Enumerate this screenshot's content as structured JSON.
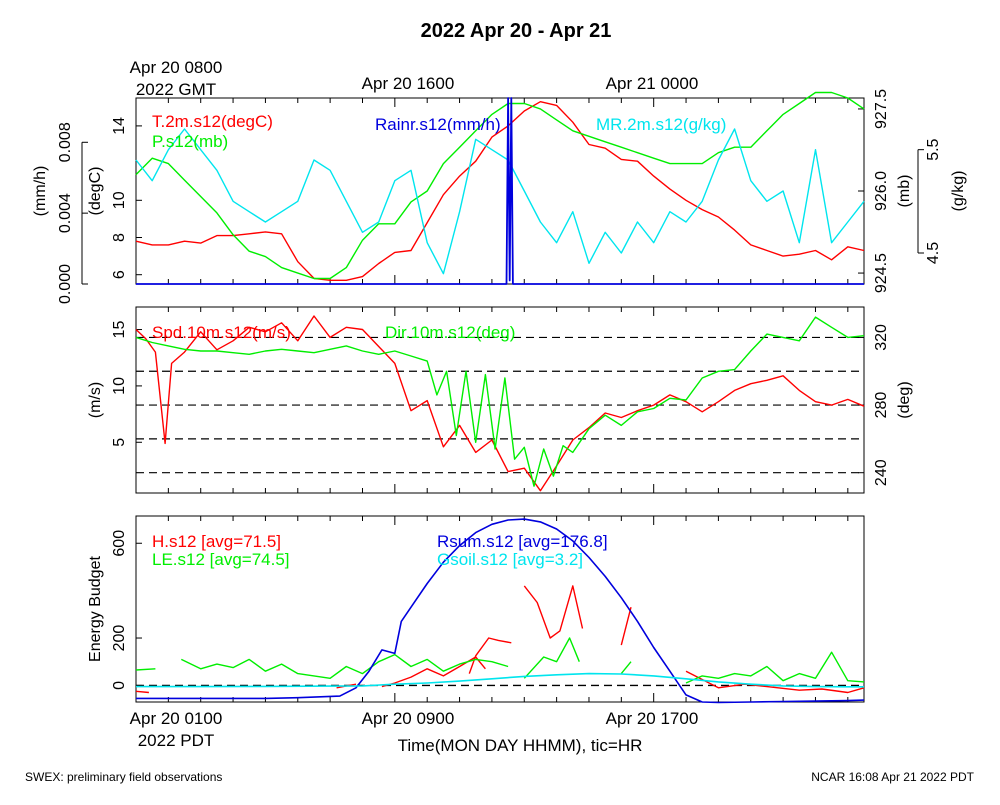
{
  "title": "2022 Apr 20 - Apr 21",
  "top_axis": {
    "labels": [
      {
        "lines": [
          "Apr 20 0800",
          "2022 GMT"
        ]
      },
      {
        "lines": [
          "Apr 20 1600"
        ]
      },
      {
        "lines": [
          "Apr 21 0000"
        ]
      }
    ]
  },
  "bottom_axis": {
    "labels": [
      {
        "lines": [
          "Apr 20 0100",
          "2022 PDT"
        ]
      },
      {
        "lines": [
          "Apr 20 0900"
        ]
      },
      {
        "lines": [
          "Apr 20 1700"
        ]
      }
    ],
    "title": "Time(MON DAY HHMM), tic=HR"
  },
  "footer": {
    "left": "SWEX: preliminary field observations",
    "right": "NCAR 16:08 Apr 21 2022 PDT"
  },
  "colors": {
    "red": "#ff0000",
    "green": "#00ee00",
    "blue": "#0000dd",
    "cyan": "#00e5ee",
    "black": "#000000"
  },
  "chart_data": [
    {
      "type": "line",
      "x_unit": "hours since Apr 20 0100 PDT",
      "xlim": [
        0,
        22.5
      ],
      "legend": [
        "T.2m.s12(degC)",
        "P.s12(mb)",
        "Rainr.s12(mm/h)",
        "MR.2m.s12(g/kg)"
      ],
      "axes": [
        {
          "label": "(mm/h)",
          "ticks": [
            "0.000",
            "0.004",
            "0.008"
          ],
          "range": [
            0,
            0.0105
          ]
        },
        {
          "label": "(degC)",
          "ticks": [
            "6",
            "8",
            "10",
            "14"
          ],
          "range": [
            5.5,
            15.5
          ]
        },
        {
          "label": "(mb)",
          "ticks": [
            "924.5",
            "926.0",
            "927.5"
          ],
          "range": [
            924.3,
            927.7
          ]
        },
        {
          "label": "(g/kg)",
          "ticks": [
            "4.5",
            "5.5"
          ],
          "range": [
            4.2,
            6.0
          ]
        }
      ],
      "series": [
        {
          "name": "T.2m.s12(degC)",
          "color": "red",
          "axis": 1,
          "x": [
            0,
            0.5,
            1,
            1.5,
            2,
            2.5,
            3,
            3.5,
            4,
            4.5,
            5,
            5.5,
            6,
            6.5,
            7,
            7.5,
            8,
            8.5,
            9,
            9.5,
            10,
            10.5,
            11,
            11.5,
            12,
            12.5,
            13,
            13.5,
            14,
            14.5,
            15,
            15.5,
            16,
            16.5,
            17,
            17.5,
            18,
            18.5,
            19,
            19.5,
            20,
            20.5,
            21,
            21.5,
            22,
            22.5
          ],
          "y": [
            7.8,
            7.6,
            7.6,
            7.8,
            7.7,
            8.1,
            8.1,
            8.2,
            8.3,
            8.2,
            6.7,
            5.8,
            5.7,
            5.7,
            5.9,
            6.6,
            7.2,
            7.3,
            8.8,
            10.3,
            11.3,
            12.1,
            13.4,
            14.0,
            14.8,
            15.3,
            15.1,
            14.2,
            13.0,
            12.8,
            12.2,
            12.1,
            11.3,
            10.6,
            10.0,
            9.5,
            9.1,
            8.4,
            7.6,
            7.3,
            7.0,
            7.1,
            7.3,
            6.8,
            7.5,
            7.3
          ]
        },
        {
          "name": "P.s12(mb)",
          "color": "green",
          "axis": 2,
          "x": [
            0,
            0.5,
            1,
            1.5,
            2,
            2.5,
            3,
            3.5,
            4,
            4.5,
            5,
            5.5,
            6,
            6.5,
            7,
            7.5,
            8,
            8.5,
            9,
            9.5,
            10,
            10.5,
            11,
            11.5,
            12,
            12.5,
            13,
            13.5,
            14,
            14.5,
            15,
            15.5,
            16,
            16.5,
            17,
            17.5,
            18,
            18.5,
            19,
            19.5,
            20,
            20.5,
            21,
            21.5,
            22,
            22.5
          ],
          "y": [
            926.3,
            926.6,
            926.5,
            926.2,
            925.9,
            925.6,
            925.2,
            924.9,
            924.8,
            924.6,
            924.5,
            924.4,
            924.4,
            924.6,
            925.1,
            925.4,
            925.4,
            925.8,
            926.0,
            926.5,
            926.8,
            927.1,
            927.4,
            927.6,
            927.6,
            927.5,
            927.3,
            927.1,
            927.0,
            926.9,
            926.8,
            926.7,
            926.6,
            926.5,
            926.5,
            926.5,
            926.7,
            926.8,
            926.8,
            927.1,
            927.4,
            927.6,
            927.8,
            927.8,
            927.7,
            927.5
          ]
        },
        {
          "name": "MR.2m.s12(g/kg)",
          "color": "cyan",
          "axis": 3,
          "x": [
            0,
            0.5,
            1,
            1.5,
            2,
            2.5,
            3,
            3.5,
            4,
            4.5,
            5,
            5.5,
            6,
            6.5,
            7,
            7.5,
            8,
            8.5,
            9,
            9.5,
            10,
            10.5,
            11,
            11.5,
            12,
            12.5,
            13,
            13.5,
            14,
            14.5,
            15,
            15.5,
            16,
            16.5,
            17,
            17.5,
            18,
            18.5,
            19,
            19.5,
            20,
            20.5,
            21,
            21.5,
            22,
            22.5
          ],
          "y": [
            5.4,
            5.2,
            5.5,
            5.7,
            5.5,
            5.3,
            5.0,
            4.9,
            4.8,
            4.9,
            5.0,
            5.4,
            5.3,
            5.0,
            4.7,
            4.8,
            5.2,
            5.3,
            4.6,
            4.3,
            4.9,
            5.6,
            5.5,
            5.4,
            5.1,
            4.8,
            4.6,
            4.9,
            4.4,
            4.7,
            4.5,
            4.8,
            4.6,
            4.9,
            4.8,
            5.0,
            5.4,
            5.7,
            5.2,
            5.0,
            5.1,
            4.6,
            5.5,
            4.6,
            4.8,
            5.0
          ]
        },
        {
          "name": "Rainr.s12(mm/h)",
          "color": "blue",
          "axis": 0,
          "x": [
            0,
            11.45,
            11.5,
            11.55,
            11.6,
            11.65,
            22.5
          ],
          "y": [
            0,
            0,
            0.0105,
            0.0002,
            0.0105,
            0,
            0
          ]
        }
      ]
    },
    {
      "type": "line",
      "x_unit": "hours since Apr 20 0100 PDT",
      "xlim": [
        0,
        22.5
      ],
      "legend": [
        "Spd.10m.s12(m/s)",
        "Dir.10m.s12(deg)"
      ],
      "axes": [
        {
          "label": "(m/s)",
          "ticks": [
            "5",
            "10",
            "15"
          ],
          "range": [
            0.5,
            17
          ]
        },
        {
          "label": "(deg)",
          "ticks": [
            "240",
            "280",
            "320"
          ],
          "range": [
            228,
            338
          ]
        }
      ],
      "reference_lines": [
        320,
        300,
        280,
        260,
        240
      ],
      "series": [
        {
          "name": "Spd.10m.s12(m/s)",
          "color": "red",
          "axis": 0,
          "x": [
            0,
            0.3,
            0.6,
            0.9,
            1.1,
            1.5,
            2,
            2.5,
            3,
            3.5,
            4,
            4.5,
            5,
            5.5,
            6,
            6.5,
            7,
            7.5,
            8,
            8.5,
            9,
            9.5,
            10,
            10.5,
            11,
            11.5,
            12,
            12.5,
            13,
            13.5,
            14,
            14.5,
            15,
            15.5,
            16,
            16.5,
            17,
            17.5,
            18,
            18.5,
            19,
            19.5,
            20,
            20.5,
            21,
            21.5,
            22,
            22.5
          ],
          "y": [
            15.0,
            14.2,
            13.0,
            4.9,
            12.0,
            13.0,
            14.8,
            13.2,
            14.0,
            15.2,
            14.8,
            15.6,
            14.0,
            16.2,
            14.3,
            15.2,
            15.0,
            13.5,
            12.0,
            7.8,
            8.7,
            4.6,
            6.5,
            4.1,
            5.2,
            2.4,
            2.7,
            0.7,
            2.9,
            5.2,
            6.3,
            7.6,
            7.2,
            7.8,
            8.3,
            9.2,
            8.6,
            7.7,
            8.6,
            9.6,
            10.2,
            10.5,
            10.9,
            9.6,
            8.6,
            8.3,
            8.8,
            8.2
          ]
        },
        {
          "name": "Dir.10m.s12(deg)",
          "color": "green",
          "axis": 1,
          "x": [
            0,
            0.5,
            1,
            1.5,
            2,
            2.5,
            3,
            3.5,
            4,
            4.5,
            5,
            5.5,
            6,
            6.5,
            7,
            7.5,
            8,
            8.5,
            9,
            9.3,
            9.6,
            9.9,
            10.2,
            10.5,
            10.8,
            11.1,
            11.4,
            11.7,
            12,
            12.3,
            12.6,
            12.9,
            13.2,
            13.5,
            14,
            14.5,
            15,
            15.5,
            16,
            16.5,
            17,
            17.5,
            18,
            18.5,
            19,
            19.5,
            20,
            20.5,
            21,
            21.5,
            22,
            22.5
          ],
          "y": [
            320,
            317,
            315,
            313,
            312,
            312,
            311,
            310,
            312,
            313,
            312,
            311,
            313,
            315,
            312,
            310,
            312,
            309,
            306,
            286,
            300,
            262,
            300,
            258,
            298,
            254,
            296,
            248,
            255,
            232,
            254,
            238,
            256,
            252,
            266,
            274,
            268,
            276,
            278,
            284,
            283,
            296,
            300,
            301,
            312,
            322,
            320,
            318,
            332,
            326,
            320,
            321
          ]
        }
      ]
    },
    {
      "type": "line",
      "ylabel": "Energy Budget",
      "x_unit": "hours since Apr 20 0100 PDT",
      "xlim": [
        0,
        22.5
      ],
      "yticks": [
        0,
        200,
        600
      ],
      "ylim": [
        -70,
        715
      ],
      "zero_line": true,
      "legend": [
        "H.s12 [avg=71.5]",
        "LE.s12 [avg=74.5]",
        "Rsum.s12 [avg=176.8]",
        "Gsoil.s12 [avg=3.2]"
      ],
      "series": [
        {
          "name": "H.s12 [avg=71.5]",
          "color": "red",
          "segments": [
            {
              "x": [
                0,
                0.4
              ],
              "y": [
                -25,
                -30
              ]
            },
            {
              "x": [
                6.2,
                6.8
              ],
              "y": [
                -10,
                5
              ]
            },
            {
              "x": [
                7.6,
                8.0,
                8.5,
                9.0,
                9.5,
                10.0,
                10.5,
                10.8
              ],
              "y": [
                -5,
                10,
                35,
                70,
                40,
                80,
                120,
                70
              ]
            },
            {
              "x": [
                10.3,
                10.5,
                10.9,
                11.2,
                11.6
              ],
              "y": [
                50,
                125,
                200,
                190,
                180
              ]
            },
            {
              "x": [
                12.0,
                12.4,
                12.8,
                13.1,
                13.5,
                13.8
              ],
              "y": [
                420,
                350,
                200,
                230,
                420,
                240
              ]
            },
            {
              "x": [
                15.0,
                15.3
              ],
              "y": [
                170,
                330
              ]
            },
            {
              "x": [
                17.0,
                18.0,
                18.8,
                19.5,
                20.5,
                21.2,
                22.0,
                22.5
              ],
              "y": [
                60,
                -10,
                5,
                -5,
                -20,
                -15,
                -30,
                -10
              ]
            }
          ]
        },
        {
          "name": "LE.s12 [avg=74.5]",
          "color": "green",
          "segments": [
            {
              "x": [
                0,
                0.6
              ],
              "y": [
                65,
                70
              ]
            },
            {
              "x": [
                1.4,
                2.0,
                2.5,
                3.0,
                3.5,
                4.0,
                4.5,
                5.0,
                5.5,
                6.0,
                6.5,
                7.0,
                7.5,
                8.0,
                8.5,
                9.0,
                9.5,
                10.0,
                10.5,
                11.0,
                11.5
              ],
              "y": [
                110,
                70,
                90,
                75,
                110,
                60,
                90,
                50,
                40,
                30,
                80,
                50,
                100,
                130,
                80,
                110,
                60,
                90,
                110,
                100,
                80
              ]
            },
            {
              "x": [
                12.0,
                12.6,
                13.0,
                13.4,
                13.7
              ],
              "y": [
                30,
                120,
                100,
                200,
                100
              ]
            },
            {
              "x": [
                15.0,
                15.3
              ],
              "y": [
                50,
                100
              ]
            },
            {
              "x": [
                17.0,
                17.5,
                18.0,
                18.5,
                19.0,
                19.5,
                20.0,
                20.5,
                21.0,
                21.5,
                22.0,
                22.5
              ],
              "y": [
                10,
                40,
                30,
                50,
                40,
                80,
                20,
                50,
                30,
                140,
                20,
                15
              ]
            }
          ]
        },
        {
          "name": "Rsum.s12 [avg=176.8]",
          "color": "blue",
          "x": [
            0,
            2,
            4,
            5,
            6.3,
            6.8,
            7.2,
            7.6,
            8.0,
            8.2,
            8.5,
            9.0,
            9.5,
            10.0,
            10.5,
            11.0,
            11.5,
            12.0,
            12.5,
            13.0,
            13.5,
            14.0,
            14.5,
            15.0,
            15.5,
            16.0,
            16.5,
            17.0,
            17.5,
            18.0,
            19.0,
            20.0,
            21.0,
            22.0,
            22.5
          ],
          "y": [
            -55,
            -55,
            -55,
            -52,
            -45,
            -10,
            60,
            150,
            135,
            270,
            330,
            430,
            520,
            590,
            645,
            680,
            698,
            702,
            690,
            660,
            610,
            540,
            460,
            370,
            270,
            160,
            60,
            -40,
            -70,
            -72,
            -70,
            -68,
            -66,
            -64,
            -62
          ]
        },
        {
          "name": "Gsoil.s12 [avg=3.2]",
          "color": "cyan",
          "x": [
            0,
            2,
            4,
            6,
            7,
            8,
            9,
            10,
            11,
            12,
            13,
            14,
            15,
            16,
            17,
            18,
            19,
            20,
            21,
            22,
            22.5
          ],
          "y": [
            -5,
            -5,
            -4,
            -3,
            -2,
            5,
            10,
            18,
            28,
            38,
            45,
            50,
            48,
            40,
            28,
            15,
            5,
            -2,
            -5,
            -6,
            -6
          ]
        }
      ]
    }
  ]
}
